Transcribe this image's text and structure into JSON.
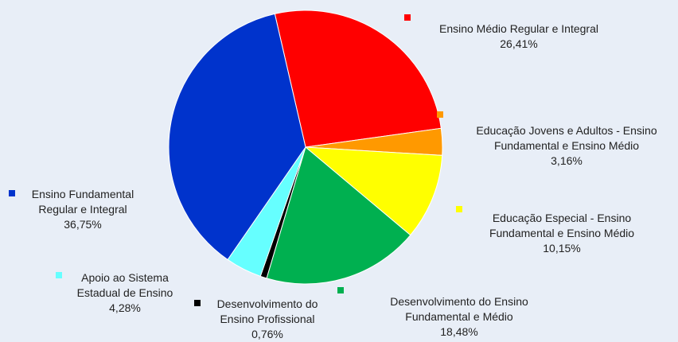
{
  "chart_data": {
    "type": "pie",
    "categories": [
      "Ensino Médio Regular e Integral",
      "Educação Jovens e Adultos - Ensino Fundamental e Ensino Médio",
      "Educação Especial - Ensino Fundamental e Ensino Médio",
      "Desenvolvimento do Ensino Fundamental e Médio",
      "Desenvolvimento do Ensino Profissional",
      "Apoio ao Sistema Estadual de Ensino",
      "Ensino Fundamental Regular e Integral"
    ],
    "values": [
      26.41,
      3.16,
      10.15,
      18.48,
      0.76,
      4.28,
      36.75
    ],
    "value_labels": [
      "26,41%",
      "3,16%",
      "10,15%",
      "18,48%",
      "0,76%",
      "4,28%",
      "36,75%"
    ],
    "colors": [
      "#ff0000",
      "#ff9900",
      "#ffff00",
      "#00b050",
      "#000000",
      "#66ffff",
      "#0033cc"
    ]
  }
}
